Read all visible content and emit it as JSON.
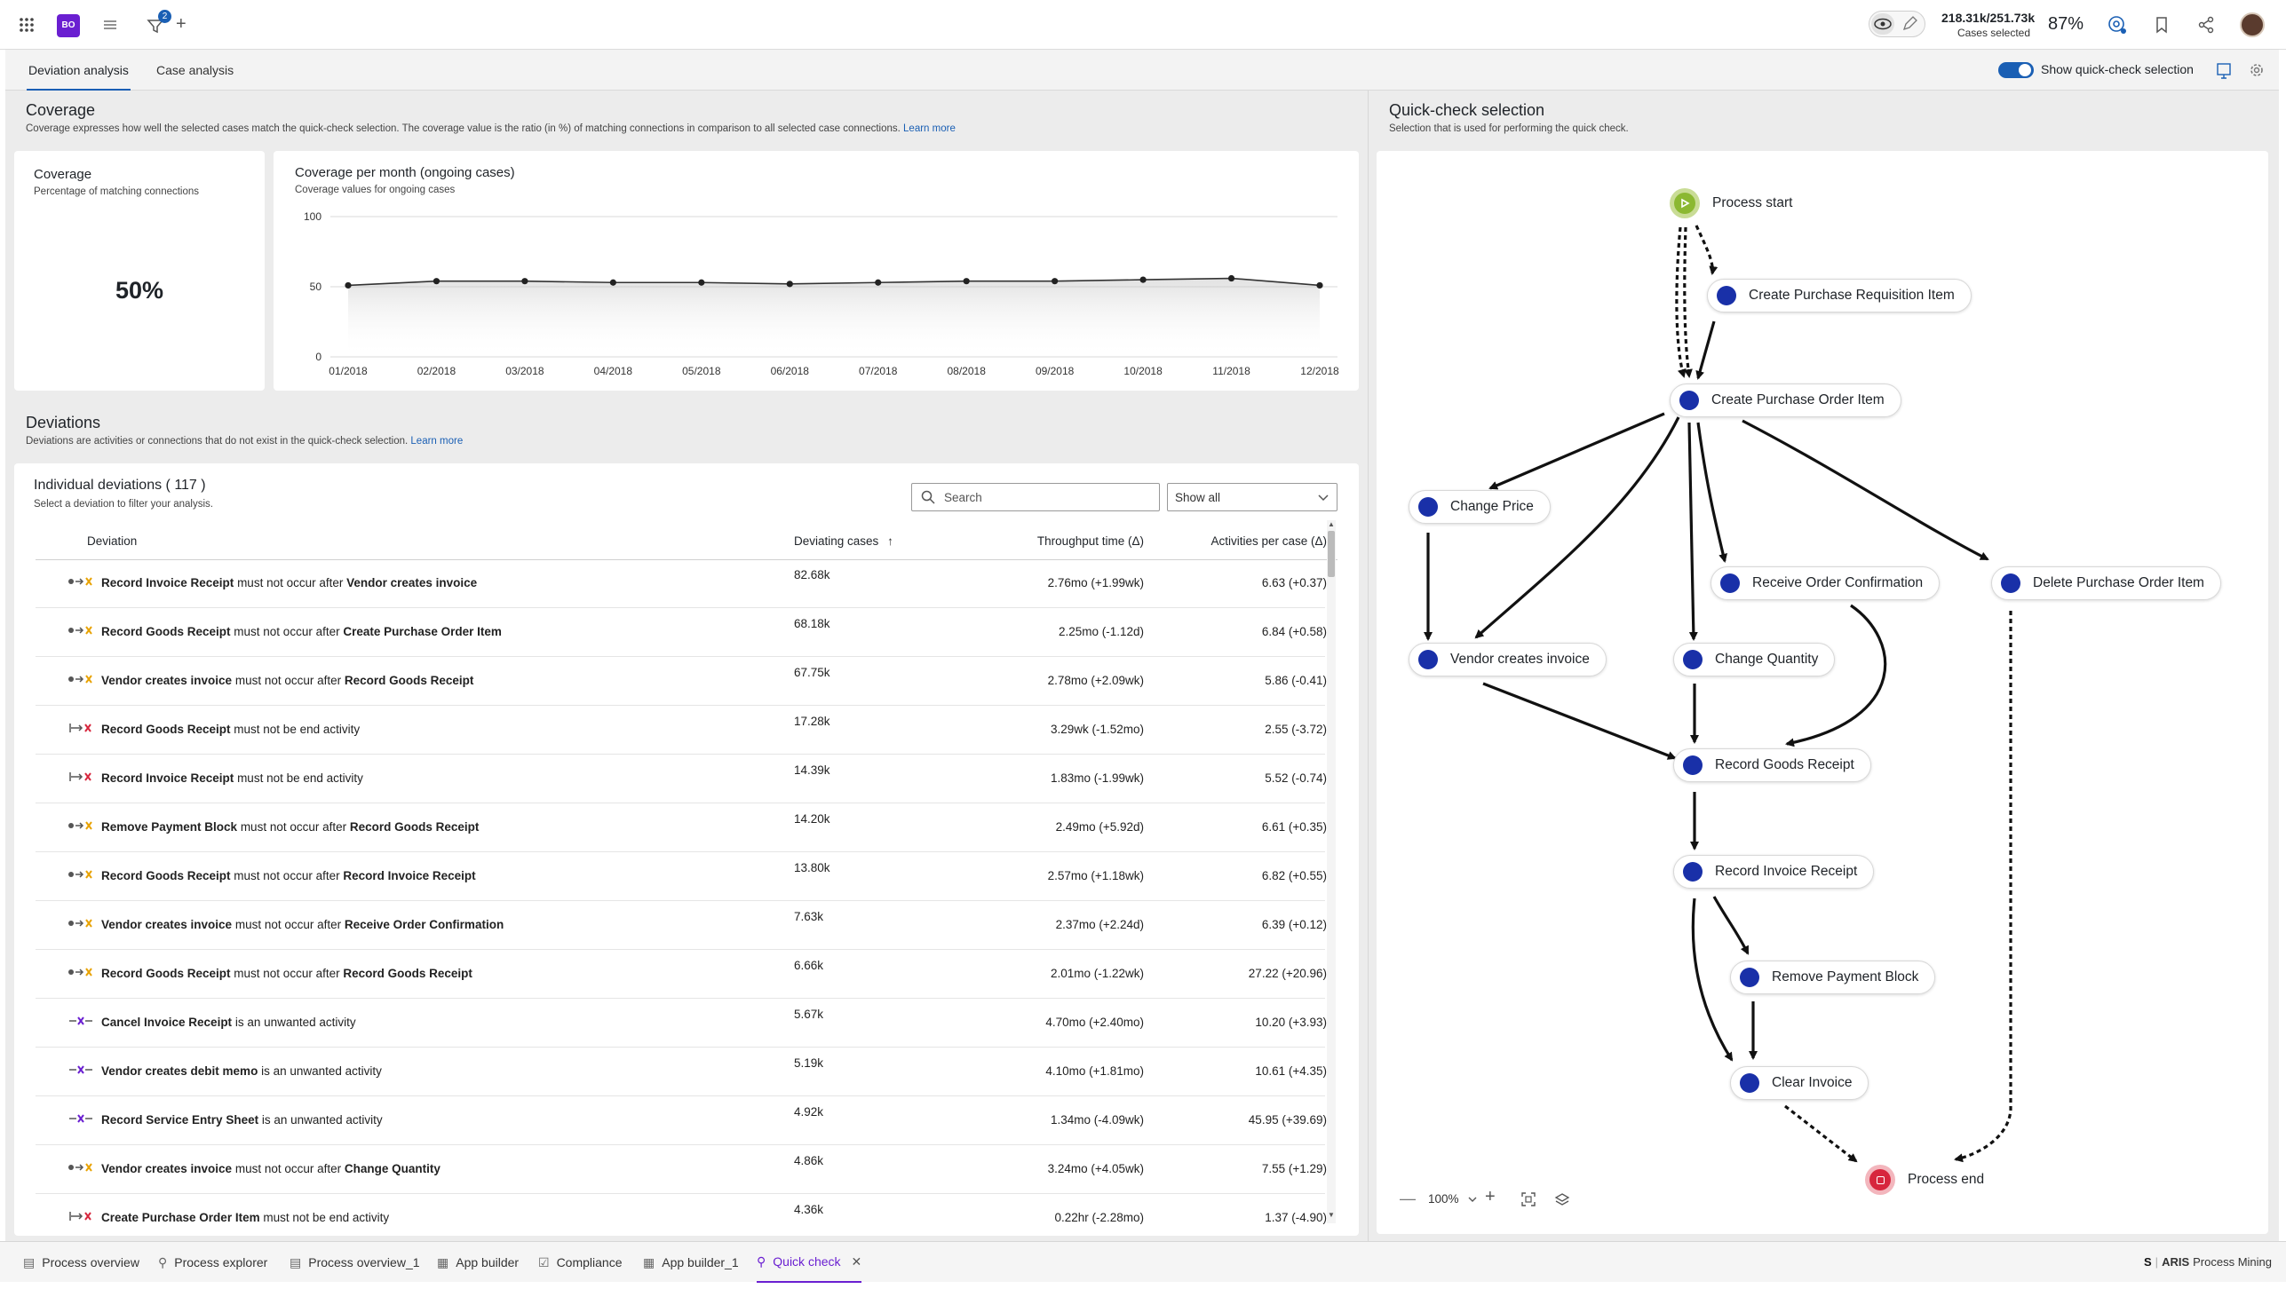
{
  "topbar": {
    "avatar_text": "BO",
    "filter_badge": "2",
    "cases_selected_value": "218.31k/251.73k",
    "cases_selected_label": "Cases selected",
    "cases_percent": "87%"
  },
  "tabs": [
    "Deviation analysis",
    "Case analysis"
  ],
  "toggle_label": "Show quick-check selection",
  "coverage": {
    "title": "Coverage",
    "description": "Coverage expresses how well the selected cases match the quick-check selection. The coverage value is the ratio (in %) of matching connections in comparison to all selected case connections.",
    "learn_more": "Learn more",
    "kpi_title": "Coverage",
    "kpi_sub": "Percentage of matching connections",
    "kpi_value": "50%"
  },
  "chart_data": {
    "type": "line",
    "title": "Coverage per month (ongoing cases)",
    "subtitle": "Coverage values for ongoing cases",
    "categories": [
      "01/2018",
      "02/2018",
      "03/2018",
      "04/2018",
      "05/2018",
      "06/2018",
      "07/2018",
      "08/2018",
      "09/2018",
      "10/2018",
      "11/2018",
      "12/2018"
    ],
    "values": [
      51,
      54,
      54,
      53,
      53,
      52,
      53,
      54,
      54,
      55,
      56,
      51
    ],
    "yticks": [
      "100",
      "50",
      "0"
    ],
    "ylim": [
      0,
      100
    ],
    "grid": true
  },
  "deviations": {
    "title": "Deviations",
    "description": "Deviations are activities or connections that do not exist in the quick-check selection.",
    "learn_more": "Learn more",
    "list_title": "Individual deviations ( 117 )",
    "list_sub": "Select a deviation to filter your analysis.",
    "search_placeholder": "Search",
    "filter_value": "Show all",
    "columns": [
      "Deviation",
      "Deviating cases",
      "Throughput time (Δ)",
      "Activities per case (Δ)"
    ],
    "sort_indicator": "↑",
    "rows": [
      {
        "icon": "sequence-icon",
        "a": "Record Invoice Receipt",
        "mid": " must not occur after ",
        "b": "Vendor creates invoice",
        "cases": "82.68k",
        "tt": "2.76mo (+1.99wk)",
        "apc": "6.63 (+0.37)"
      },
      {
        "icon": "sequence-icon",
        "a": "Record Goods Receipt",
        "mid": " must not occur after ",
        "b": "Create Purchase Order Item",
        "cases": "68.18k",
        "tt": "2.25mo (-1.12d)",
        "apc": "6.84 (+0.58)"
      },
      {
        "icon": "sequence-icon",
        "a": "Vendor creates invoice",
        "mid": " must not occur after ",
        "b": "Record Goods Receipt",
        "cases": "67.75k",
        "tt": "2.78mo (+2.09wk)",
        "apc": "5.86 (-0.41)"
      },
      {
        "icon": "end-activity-icon",
        "a": "Record Goods Receipt",
        "mid": " must not be end activity",
        "b": "",
        "cases": "17.28k",
        "tt": "3.29wk (-1.52mo)",
        "apc": "2.55 (-3.72)"
      },
      {
        "icon": "end-activity-icon",
        "a": "Record Invoice Receipt",
        "mid": " must not be end activity",
        "b": "",
        "cases": "14.39k",
        "tt": "1.83mo (-1.99wk)",
        "apc": "5.52 (-0.74)"
      },
      {
        "icon": "sequence-icon",
        "a": "Remove Payment Block",
        "mid": " must not occur after ",
        "b": "Record Goods Receipt",
        "cases": "14.20k",
        "tt": "2.49mo (+5.92d)",
        "apc": "6.61 (+0.35)"
      },
      {
        "icon": "sequence-icon",
        "a": "Record Goods Receipt",
        "mid": " must not occur after ",
        "b": "Record Invoice Receipt",
        "cases": "13.80k",
        "tt": "2.57mo (+1.18wk)",
        "apc": "6.82 (+0.55)"
      },
      {
        "icon": "sequence-icon",
        "a": "Vendor creates invoice",
        "mid": " must not occur after ",
        "b": "Receive Order Confirmation",
        "cases": "7.63k",
        "tt": "2.37mo (+2.24d)",
        "apc": "6.39 (+0.12)"
      },
      {
        "icon": "sequence-icon",
        "a": "Record Goods Receipt",
        "mid": " must not occur after ",
        "b": "Record Goods Receipt",
        "cases": "6.66k",
        "tt": "2.01mo (-1.22wk)",
        "apc": "27.22 (+20.96)"
      },
      {
        "icon": "unwanted-activity-icon",
        "a": "Cancel Invoice Receipt",
        "mid": " is an unwanted activity",
        "b": "",
        "cases": "5.67k",
        "tt": "4.70mo (+2.40mo)",
        "apc": "10.20 (+3.93)"
      },
      {
        "icon": "unwanted-activity-icon",
        "a": "Vendor creates debit memo",
        "mid": " is an unwanted activity",
        "b": "",
        "cases": "5.19k",
        "tt": "4.10mo (+1.81mo)",
        "apc": "10.61 (+4.35)"
      },
      {
        "icon": "unwanted-activity-icon",
        "a": "Record Service Entry Sheet",
        "mid": " is an unwanted activity",
        "b": "",
        "cases": "4.92k",
        "tt": "1.34mo (-4.09wk)",
        "apc": "45.95 (+39.69)"
      },
      {
        "icon": "sequence-icon",
        "a": "Vendor creates invoice",
        "mid": " must not occur after ",
        "b": "Change Quantity",
        "cases": "4.86k",
        "tt": "3.24mo (+4.05wk)",
        "apc": "7.55 (+1.29)"
      },
      {
        "icon": "end-activity-icon",
        "a": "Create Purchase Order Item",
        "mid": " must not be end activity",
        "b": "",
        "cases": "4.36k",
        "tt": "0.22hr (-2.28mo)",
        "apc": "1.37 (-4.90)"
      }
    ]
  },
  "quickcheck": {
    "title": "Quick-check selection",
    "subtitle": "Selection that is used for performing the quick check.",
    "zoom": "100%",
    "nodes": {
      "start": "Process start",
      "cpri": "Create Purchase Requisition Item",
      "cpoi": "Create Purchase Order Item",
      "cp": "Change Price",
      "roc": "Receive Order Confirmation",
      "dpoi": "Delete Purchase Order Item",
      "vci": "Vendor creates invoice",
      "cq": "Change Quantity",
      "rgr": "Record Goods Receipt",
      "rir": "Record Invoice Receipt",
      "rpb": "Remove Payment Block",
      "ci": "Clear Invoice",
      "end": "Process end"
    }
  },
  "bottom_tabs": [
    "Process overview",
    "Process explorer",
    "Process overview_1",
    "App builder",
    "Compliance",
    "App builder_1",
    "Quick check"
  ],
  "brand": {
    "name": "ARIS",
    "product": "Process Mining"
  },
  "colors": {
    "accent": "#1a5fb4",
    "node": "#1930a8",
    "start": "#8bb832",
    "end": "#d7263d",
    "purple": "#6a1fd1"
  }
}
